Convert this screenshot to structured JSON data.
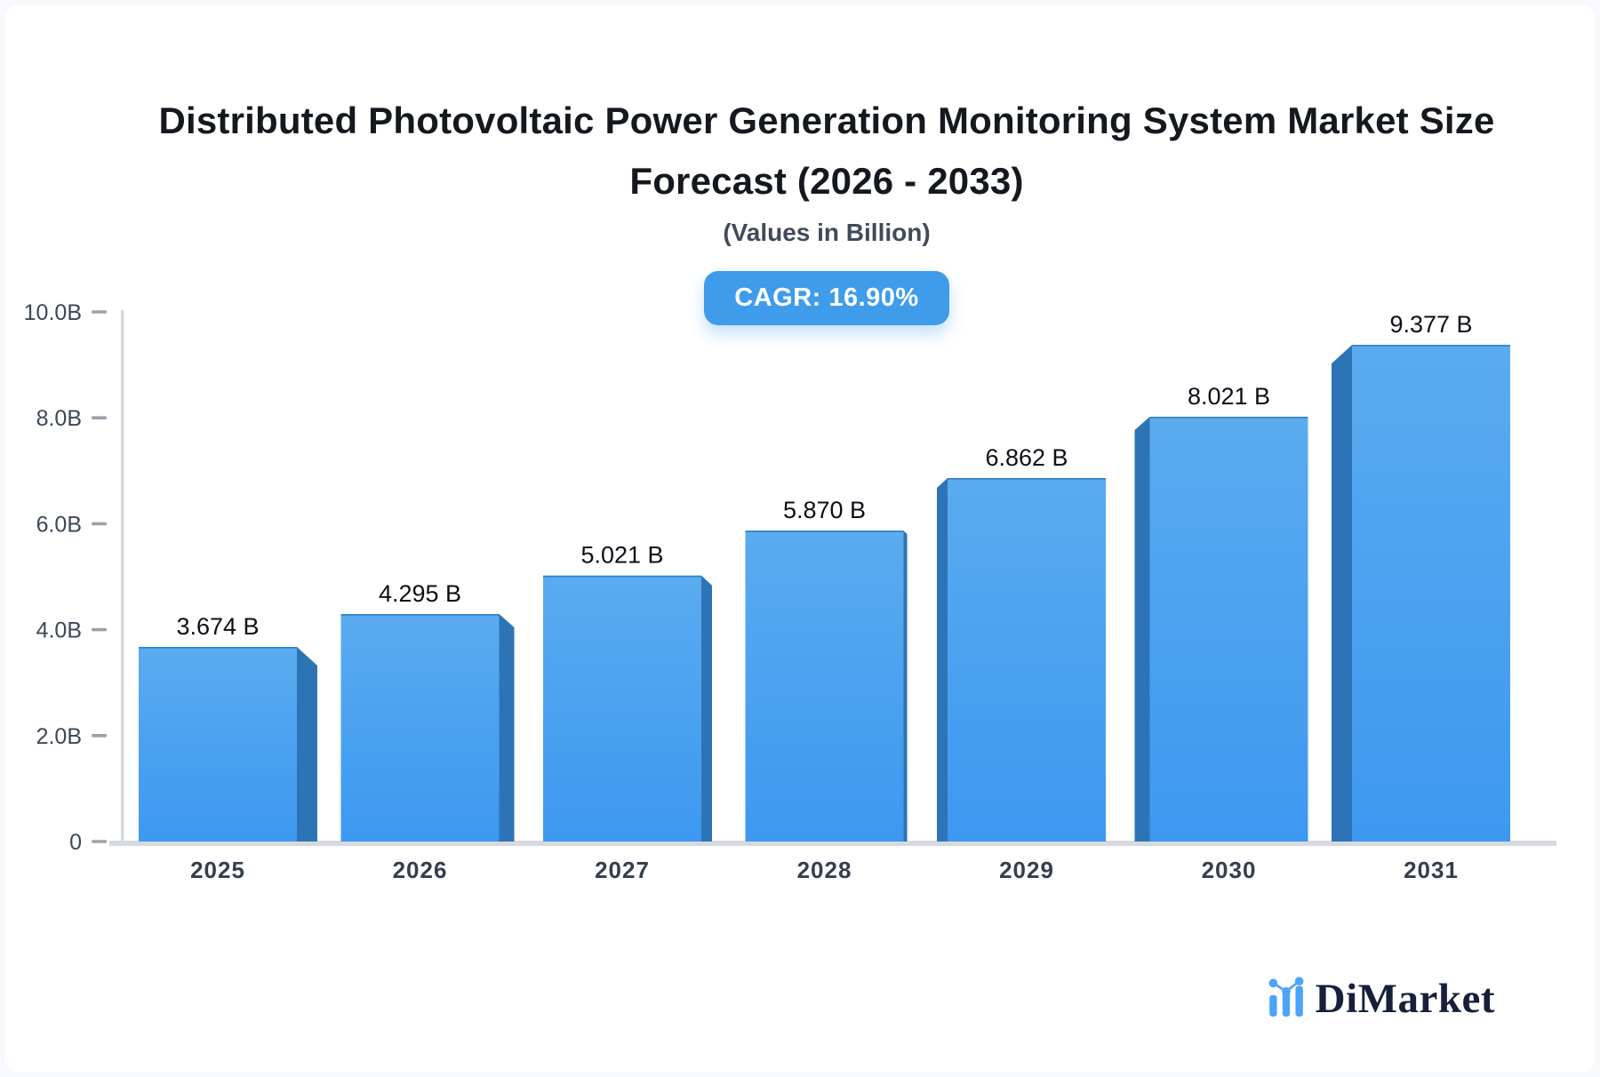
{
  "page": {
    "background": "#f7f9fc",
    "card_background": "#ffffff"
  },
  "header": {
    "title_line1": "Distributed Photovoltaic Power Generation Monitoring System Market Size",
    "title_line2": "Forecast (2026 - 2033)",
    "subtitle": "(Values in Billion)",
    "cagr_label": "CAGR: 16.90%",
    "badge_color": "#3f9cea"
  },
  "chart_data": {
    "type": "bar",
    "title": "Distributed Photovoltaic Power Generation Monitoring System Market Size Forecast (2026 - 2033)",
    "subtitle": "(Values in Billion)",
    "cagr_percent": "16.90%",
    "categories": [
      "2025",
      "2026",
      "2027",
      "2028",
      "2029",
      "2030",
      "2031"
    ],
    "values": [
      3.674,
      4.295,
      5.021,
      5.87,
      6.862,
      8.021,
      9.377
    ],
    "value_labels": [
      "3.674 B",
      "4.295 B",
      "5.021 B",
      "5.870 B",
      "6.862 B",
      "8.021 B",
      "9.377 B"
    ],
    "xlabel": "",
    "ylabel": "",
    "ylim": [
      0,
      10
    ],
    "yticks": [
      {
        "value": 0,
        "label": "0"
      },
      {
        "value": 2,
        "label": "2.0B"
      },
      {
        "value": 4,
        "label": "4.0B"
      },
      {
        "value": 6,
        "label": "6.0B"
      },
      {
        "value": 8,
        "label": "8.0B"
      },
      {
        "value": 10,
        "label": "10.0B"
      }
    ],
    "grid": false,
    "legend": false,
    "bar_style": "3d-beveled",
    "colors": {
      "bar_face_top": "#5aabef",
      "bar_face_bottom": "#3e98f1",
      "bar_side": "#2d74b6",
      "bar_edge": "#2e7ec2",
      "axis_line": "#d6dade",
      "tick_dash": "#9aa2ac",
      "tick_label": "#3c4857",
      "category_label": "#333f4e",
      "value_label": "#0c1017"
    }
  },
  "footer": {
    "brand": "DiMarket",
    "brand_color": "#16203a",
    "logo_bar_color": "#4da3f7"
  }
}
